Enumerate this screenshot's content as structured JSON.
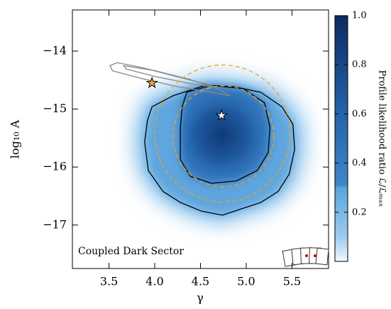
{
  "chart_data": {
    "type": "contour",
    "xlabel": "γ",
    "ylabel": "log₁₀ A",
    "colorbar_label": "Profile likelihood ratio ℒ/ℒₘₐₓ",
    "annotation": "Coupled Dark Sector",
    "xlim": [
      3.1,
      5.9
    ],
    "ylim": [
      -17.75,
      -13.29
    ],
    "xticks": [
      3.5,
      {
        "value": 4,
        "label": "4.0"
      },
      4.5,
      {
        "value": 5,
        "label": "5.0"
      },
      5.5
    ],
    "yticks": [
      {
        "value": -14,
        "label": "−14"
      },
      {
        "value": -15,
        "label": "−15"
      },
      {
        "value": -16,
        "label": "−16"
      },
      {
        "value": -17,
        "label": "−17"
      }
    ],
    "clim": [
      0,
      1
    ],
    "cticks": [
      0.2,
      0.4,
      0.6,
      0.8,
      {
        "value": 1,
        "label": "1.0"
      }
    ],
    "contours": [
      {
        "color": "#000000",
        "x": [
          3.97,
          4.2,
          4.55,
          4.85,
          5.16,
          5.39,
          5.51,
          5.53,
          5.47,
          5.35,
          5.16,
          4.93,
          4.74,
          4.51,
          4.28,
          4.09,
          3.93,
          3.89,
          3.92
        ],
        "y": [
          -14.96,
          -14.77,
          -14.59,
          -14.61,
          -14.71,
          -14.96,
          -15.26,
          -15.69,
          -16.12,
          -16.42,
          -16.61,
          -16.73,
          -16.83,
          -16.76,
          -16.61,
          -16.42,
          -16.06,
          -15.57,
          -15.2
        ]
      },
      {
        "color": "#000000",
        "x": [
          4.35,
          4.62,
          4.97,
          5.2,
          5.26,
          5.24,
          5.12,
          4.89,
          4.62,
          4.39,
          4.28,
          4.28,
          4.3
        ],
        "y": [
          -14.71,
          -14.59,
          -14.65,
          -14.89,
          -15.32,
          -15.75,
          -16.06,
          -16.24,
          -16.28,
          -16.16,
          -15.87,
          -15.32,
          -14.96
        ]
      },
      {
        "color": "#888888",
        "x": [
          3.51,
          3.59,
          3.85,
          4.24,
          4.62,
          4.82,
          4.62,
          4.24,
          3.85,
          3.54
        ],
        "y": [
          -14.25,
          -14.2,
          -14.28,
          -14.44,
          -14.59,
          -14.77,
          -14.71,
          -14.61,
          -14.47,
          -14.34
        ]
      },
      {
        "color": "#888888",
        "x": [
          3.66,
          4.01,
          4.39,
          4.62,
          4.39,
          4.01,
          3.69
        ],
        "y": [
          -14.25,
          -14.34,
          -14.49,
          -14.61,
          -14.56,
          -14.44,
          -14.31
        ]
      }
    ],
    "circles": [
      {
        "color": "#f0a020",
        "cx": 4.74,
        "cy": -15.42,
        "rx": 0.74,
        "ry": 1.18
      },
      {
        "color": "#f0a020",
        "cx": 4.75,
        "cy": -15.47,
        "rx": 0.55,
        "ry": 0.87
      }
    ],
    "points": [
      {
        "color": "#ffffff",
        "x": 4.73,
        "y": -15.11
      },
      {
        "color": "#f5a040",
        "x": 3.97,
        "y": -14.55
      }
    ]
  }
}
